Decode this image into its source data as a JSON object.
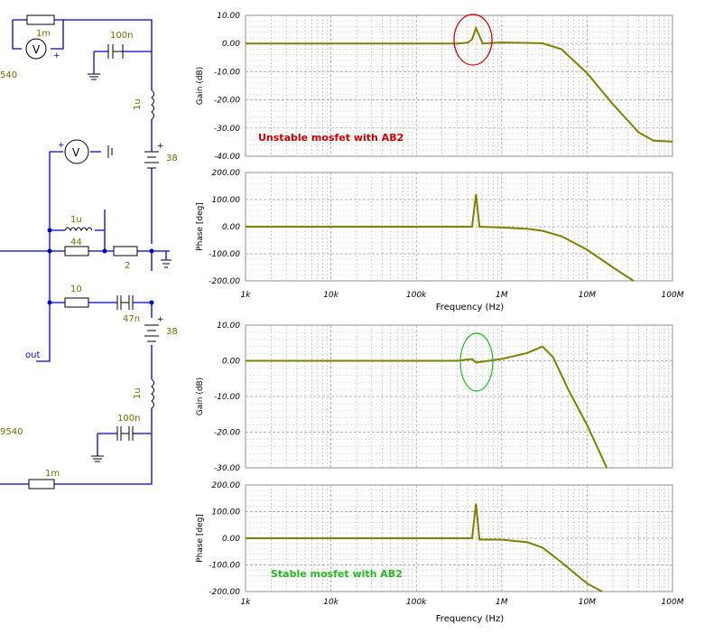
{
  "schematic": {
    "labels": {
      "r_top": "1m",
      "c_top": "100n",
      "l_top": "1u",
      "bat_top": "38",
      "part_top": "540",
      "l_mid": "1u",
      "r_44": "44",
      "r_2": "2",
      "r_10": "10",
      "c_47n": "47n",
      "bat_bot": "38",
      "out": "out",
      "l_bot": "1u",
      "c_bot": "100n",
      "part_bot": "9540",
      "r_bot": "1m",
      "meter": "V",
      "plus": "+"
    }
  },
  "chart_data": [
    {
      "type": "line",
      "x_scale": "log",
      "xlim": [
        1000,
        100000000
      ],
      "ylim": [
        -40,
        10
      ],
      "yticks": [
        "10.00",
        "0.00",
        "-10.00",
        "-20.00",
        "-30.00",
        "-40.00"
      ],
      "ylabel": "Gain (dB)",
      "grid": true,
      "annotation": "Unstable mosfet with AB2",
      "annotation_color": "#cc0000",
      "marker_ellipse_color": "#cc0000",
      "line_color": "#808000",
      "x": [
        1000,
        100000,
        300000,
        400000,
        450000,
        500000,
        600000,
        1000000,
        3000000,
        5000000,
        10000000,
        20000000,
        40000000,
        60000000,
        100000000
      ],
      "y": [
        0,
        0,
        0,
        0.3,
        1.5,
        5.5,
        0,
        0.4,
        0.1,
        -2,
        -10.5,
        -21.5,
        -31.5,
        -34.5,
        -34.8
      ]
    },
    {
      "type": "line",
      "x_scale": "log",
      "xlim": [
        1000,
        100000000
      ],
      "ylim": [
        -200,
        200
      ],
      "yticks": [
        "200.00",
        "100.00",
        "0.00",
        "-100.00",
        "-200.00"
      ],
      "ylabel": "Phase [deg]",
      "xlabel": "Frequency (Hz)",
      "xtick_labels": [
        "1k",
        "10k",
        "100k",
        "1M",
        "10M",
        "100M"
      ],
      "grid": true,
      "line_color": "#808000",
      "x": [
        1000,
        300000,
        450000,
        500000,
        550000,
        1000000,
        2000000,
        3000000,
        5000000,
        10000000,
        20000000,
        35000000
      ],
      "y": [
        0,
        0,
        0,
        120,
        0,
        -3,
        -8,
        -15,
        -35,
        -85,
        -150,
        -200
      ]
    },
    {
      "type": "line",
      "x_scale": "log",
      "xlim": [
        1000,
        100000000
      ],
      "ylim": [
        -30,
        10
      ],
      "yticks": [
        "10.00",
        "0.00",
        "-10.00",
        "-20.00",
        "-30.00"
      ],
      "ylabel": "Gain (dB)",
      "grid": true,
      "marker_ellipse_color": "#22bb22",
      "line_color": "#808000",
      "x": [
        1000,
        300000,
        450000,
        500000,
        700000,
        1000000,
        2000000,
        3000000,
        4000000,
        6000000,
        10000000,
        17000000
      ],
      "y": [
        0,
        0,
        0.5,
        -0.5,
        0,
        0.5,
        2.2,
        4,
        1,
        -8,
        -18,
        -30
      ]
    },
    {
      "type": "line",
      "x_scale": "log",
      "xlim": [
        1000,
        100000000
      ],
      "ylim": [
        -200,
        200
      ],
      "yticks": [
        "200.00",
        "100.00",
        "0.00",
        "-100.00",
        "-200.00"
      ],
      "ylabel": "Phase [deg]",
      "xlabel": "Frequency (Hz)",
      "xtick_labels": [
        "1k",
        "10k",
        "100k",
        "1M",
        "10M",
        "100M"
      ],
      "grid": true,
      "annotation": "Stable mosfet with AB2",
      "annotation_color": "#22bb22",
      "line_color": "#808000",
      "x": [
        1000,
        300000,
        450000,
        500000,
        550000,
        1000000,
        2000000,
        3000000,
        5000000,
        10000000,
        15000000
      ],
      "y": [
        0,
        0,
        0,
        130,
        -5,
        -5,
        -15,
        -35,
        -90,
        -170,
        -200
      ]
    }
  ]
}
